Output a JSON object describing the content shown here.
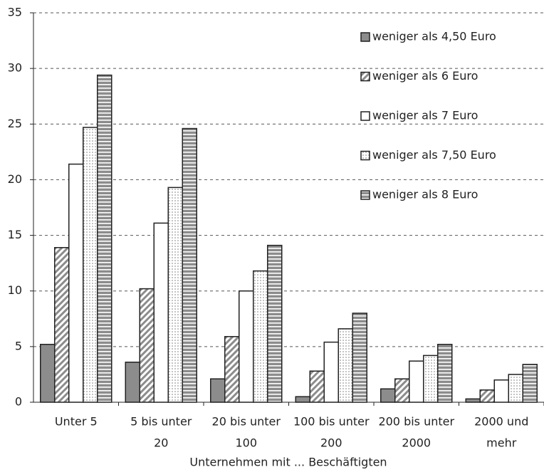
{
  "chart_data": {
    "type": "bar",
    "x_label": "Unternehmen mit ... Beschäftigten",
    "categories": [
      [
        "Unter  5"
      ],
      [
        "5 bis unter",
        "20"
      ],
      [
        "20 bis unter",
        "100"
      ],
      [
        "100 bis unter",
        "200"
      ],
      [
        "200 bis unter",
        "2000"
      ],
      [
        "2000 und",
        "mehr"
      ]
    ],
    "series": [
      {
        "name": "weniger als 4,50 Euro",
        "color": "#8c8c8c",
        "pattern": "solid",
        "values": [
          5.2,
          3.6,
          2.1,
          0.5,
          1.2,
          0.3
        ]
      },
      {
        "name": "weniger als 6 Euro",
        "color": "#8c8c8c",
        "pattern": "diagonal",
        "values": [
          13.9,
          10.2,
          5.9,
          2.8,
          2.1,
          1.1
        ]
      },
      {
        "name": "weniger als 7 Euro",
        "color": "#ffffff",
        "pattern": "solid",
        "values": [
          21.4,
          16.1,
          10.0,
          5.4,
          3.7,
          2.0
        ]
      },
      {
        "name": "weniger als 7,50 Euro",
        "color": "#9a9a9a",
        "pattern": "dots",
        "values": [
          24.7,
          19.3,
          11.8,
          6.6,
          4.2,
          2.5
        ]
      },
      {
        "name": "weniger als 8 Euro",
        "color": "#8c8c8c",
        "pattern": "stripes",
        "values": [
          29.4,
          24.6,
          14.1,
          8.0,
          5.2,
          3.4
        ]
      }
    ],
    "ylim": [
      0,
      35
    ],
    "yticks": [
      0,
      5,
      10,
      15,
      20,
      25,
      30,
      35
    ],
    "grid": true,
    "legend": "top-right"
  }
}
